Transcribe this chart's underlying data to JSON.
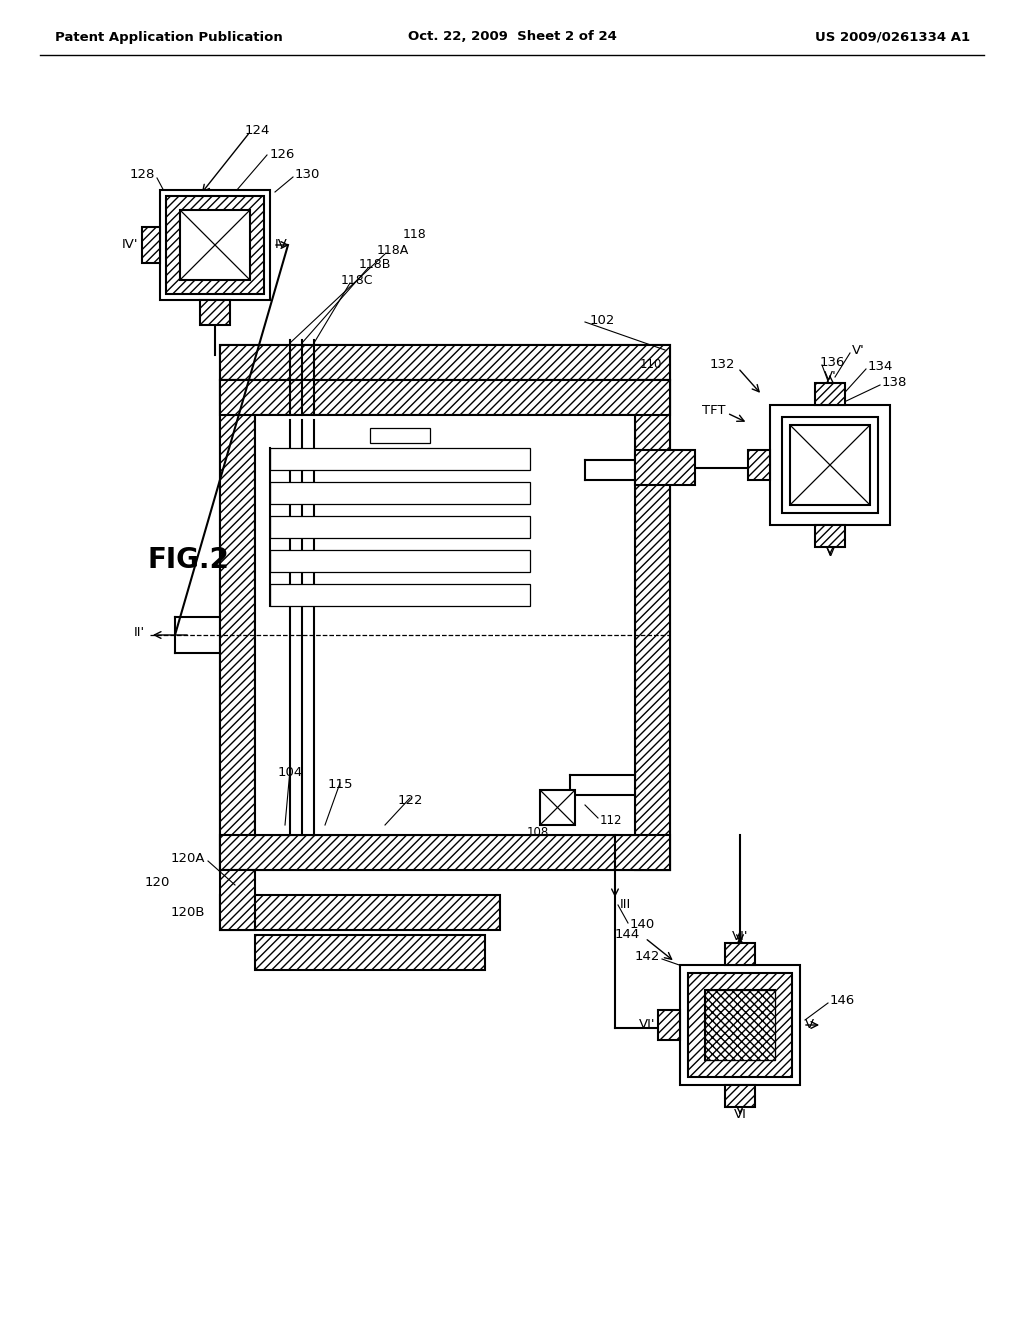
{
  "bg_color": "#ffffff",
  "header_left": "Patent Application Publication",
  "header_mid": "Oct. 22, 2009  Sheet 2 of 24",
  "header_right": "US 2009/0261334 A1",
  "fig_label": "FIG.2",
  "label_fontsize": 9.5
}
